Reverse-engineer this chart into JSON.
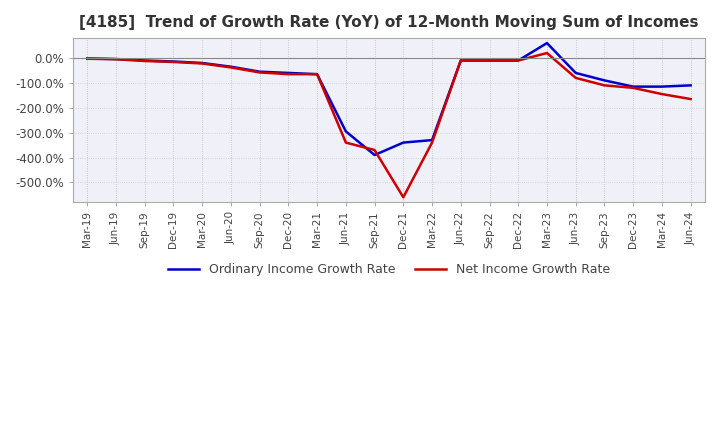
{
  "title": "[4185]  Trend of Growth Rate (YoY) of 12-Month Moving Sum of Incomes",
  "title_fontsize": 11,
  "background_color": "#ffffff",
  "plot_background_color": "#f0f0f8",
  "grid_color": "#cccccc",
  "ordinary_color": "#0000cc",
  "net_color": "#cc0000",
  "legend_ordinary": "Ordinary Income Growth Rate",
  "legend_net": "Net Income Growth Rate",
  "x_labels": [
    "Mar-19",
    "Jun-19",
    "Sep-19",
    "Dec-19",
    "Mar-20",
    "Jun-20",
    "Sep-20",
    "Dec-20",
    "Mar-21",
    "Jun-21",
    "Sep-21",
    "Dec-21",
    "Mar-22",
    "Jun-22",
    "Sep-22",
    "Dec-22",
    "Mar-23",
    "Jun-23",
    "Sep-23",
    "Dec-23",
    "Mar-24",
    "Jun-24"
  ],
  "ordinary_income_growth": [
    -2.0,
    -4.0,
    -10.0,
    -14.0,
    -20.0,
    -35.0,
    -55.0,
    -60.0,
    -65.0,
    -295.0,
    -390.0,
    -340.0,
    -330.0,
    -10.0,
    -10.0,
    -10.0,
    60.0,
    -60.0,
    -90.0,
    -115.0,
    -115.0,
    -110.0
  ],
  "net_income_growth": [
    -3.0,
    -5.0,
    -12.0,
    -16.0,
    -22.0,
    -38.0,
    -58.0,
    -65.0,
    -65.0,
    -340.0,
    -370.0,
    -560.0,
    -340.0,
    -10.0,
    -10.0,
    -10.0,
    20.0,
    -80.0,
    -110.0,
    -120.0,
    -145.0,
    -165.0
  ],
  "ylim": [
    -580,
    80
  ],
  "yticks": [
    0,
    -100,
    -200,
    -300,
    -400,
    -500
  ],
  "line_width": 1.8
}
